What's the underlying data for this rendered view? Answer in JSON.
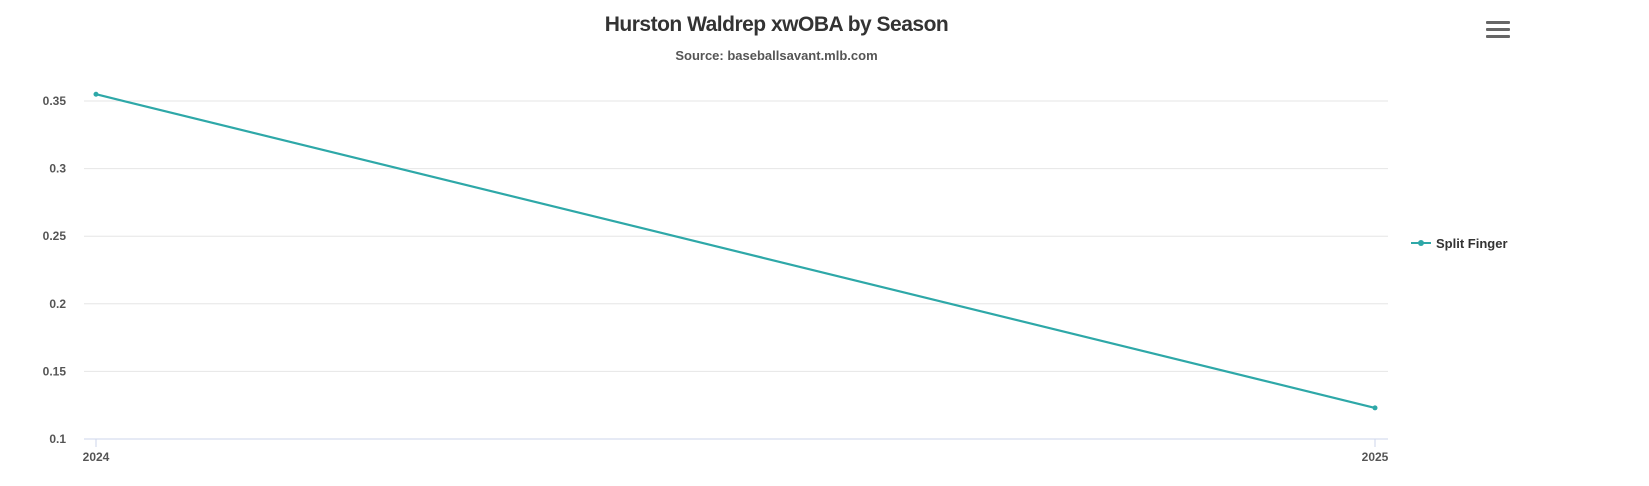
{
  "header": {
    "title": "Hurston Waldrep xwOBA by Season",
    "subtitle": "Source: baseballsavant.mlb.com"
  },
  "menu_icon": "hamburger-menu-icon",
  "chart_data": {
    "type": "line",
    "title": "Hurston Waldrep xwOBA by Season",
    "subtitle": "Source: baseballsavant.mlb.com",
    "xlabel": "",
    "ylabel": "",
    "categories": [
      "2024",
      "2025"
    ],
    "series": [
      {
        "name": "Split Finger",
        "values": [
          0.355,
          0.123
        ],
        "color": "#2ea8a8"
      }
    ],
    "ylim": [
      0.1,
      0.35
    ],
    "yticks": [
      "0.1",
      "0.15",
      "0.2",
      "0.25",
      "0.3",
      "0.35"
    ],
    "grid": true,
    "legend": "right"
  }
}
